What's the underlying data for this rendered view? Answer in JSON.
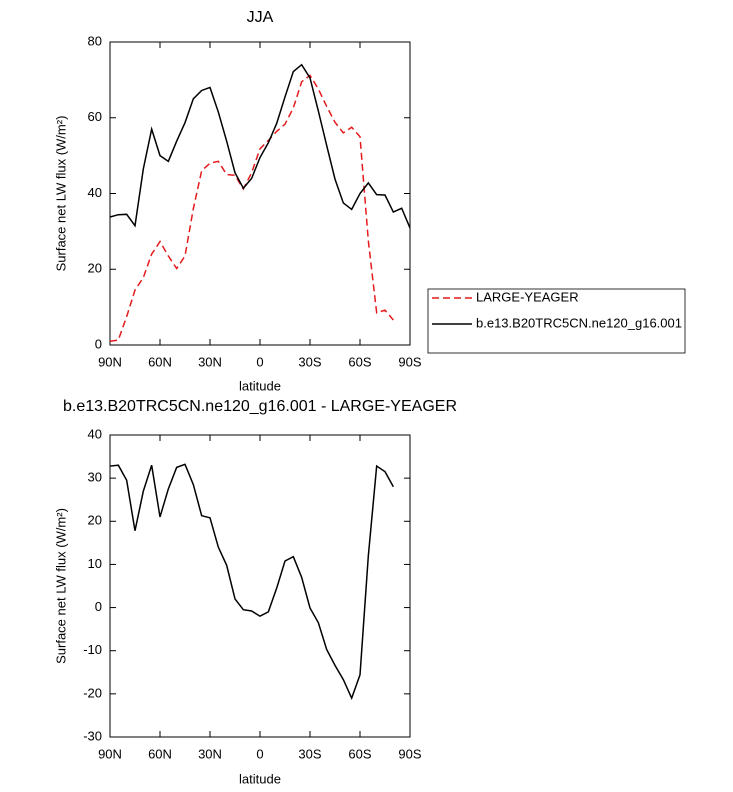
{
  "chart_data": [
    {
      "type": "line",
      "title": "JJA",
      "xlabel": "latitude",
      "ylabel": "Surface net LW flux (W/m²)",
      "x": [
        90,
        85,
        80,
        75,
        70,
        65,
        60,
        55,
        50,
        45,
        40,
        35,
        30,
        25,
        20,
        15,
        10,
        5,
        0,
        -5,
        -10,
        -15,
        -20,
        -25,
        -30,
        -35,
        -40,
        -45,
        -50,
        -55,
        -60,
        -65,
        -70,
        -75,
        -80,
        -85,
        -90
      ],
      "xlim": [
        90,
        -90
      ],
      "xticks": [
        {
          "value": 90,
          "label": "90N"
        },
        {
          "value": 60,
          "label": "60N"
        },
        {
          "value": 30,
          "label": "30N"
        },
        0,
        {
          "value": -30,
          "label": "30S"
        },
        {
          "value": -60,
          "label": "60S"
        },
        {
          "value": -90,
          "label": "90S"
        }
      ],
      "ylim": [
        0,
        80
      ],
      "yticks": [
        0,
        20,
        40,
        60,
        80
      ],
      "legend": "right",
      "series": [
        {
          "name": "LARGE-YEAGER",
          "color": "#e41a1c",
          "linestyle": "dashed",
          "values": [
            1,
            1.3,
            7.5,
            14.5,
            17.8,
            24,
            27.3,
            23.5,
            20.2,
            23.5,
            36,
            46,
            48,
            48.5,
            45,
            44.8,
            41.2,
            45.5,
            51.8,
            54,
            56.4,
            58.3,
            62.6,
            69.5,
            71.2,
            67.6,
            63,
            58.8,
            56,
            57.5,
            55,
            27.5,
            8.5,
            9.2,
            6.6,
            null,
            null
          ]
        },
        {
          "name": "b.e13.B20TRC5CN.ne120_g16.001",
          "color": "#000000",
          "linestyle": "solid",
          "values": [
            33.8,
            34.4,
            34.5,
            31.5,
            46.5,
            57,
            50,
            48.5,
            53.8,
            58.7,
            65,
            67.2,
            68,
            61.5,
            53.8,
            45.5,
            41.4,
            44,
            49.5,
            53.4,
            58.5,
            65.5,
            72.2,
            74,
            70.5,
            61.8,
            52.7,
            43.8,
            37.5,
            35.8,
            40,
            42.8,
            39.7,
            39.6,
            35.1,
            36.1,
            30.9
          ]
        }
      ]
    },
    {
      "type": "line",
      "title": "b.e13.B20TRC5CN.ne120_g16.001 - LARGE-YEAGER",
      "xlabel": "latitude",
      "ylabel": "Surface net LW flux (W/m²)",
      "x": [
        90,
        85,
        80,
        75,
        70,
        65,
        60,
        55,
        50,
        45,
        40,
        35,
        30,
        25,
        20,
        15,
        10,
        5,
        0,
        -5,
        -10,
        -15,
        -20,
        -25,
        -30,
        -35,
        -40,
        -45,
        -50,
        -55,
        -60,
        -65,
        -70,
        -75,
        -80,
        -85,
        -90
      ],
      "xlim": [
        90,
        -90
      ],
      "xticks": [
        {
          "value": 90,
          "label": "90N"
        },
        {
          "value": 60,
          "label": "60N"
        },
        {
          "value": 30,
          "label": "30N"
        },
        0,
        {
          "value": -30,
          "label": "30S"
        },
        {
          "value": -60,
          "label": "60S"
        },
        {
          "value": -90,
          "label": "90S"
        }
      ],
      "ylim": [
        -30,
        40
      ],
      "yticks": [
        -30,
        -20,
        -10,
        0,
        10,
        20,
        30,
        40
      ],
      "color": "#000000",
      "linestyle": "solid",
      "values": [
        32.8,
        33,
        29.5,
        17.8,
        27,
        33,
        21,
        27.5,
        32.5,
        33.2,
        28.5,
        21.3,
        20.8,
        14,
        9.8,
        2,
        -0.5,
        -0.8,
        -2,
        -1,
        4.5,
        10.8,
        11.8,
        7,
        -0.1,
        -3.5,
        -9.7,
        -13.4,
        -16.7,
        -21,
        -15.6,
        12,
        32.8,
        31.5,
        28,
        null,
        null
      ]
    }
  ]
}
